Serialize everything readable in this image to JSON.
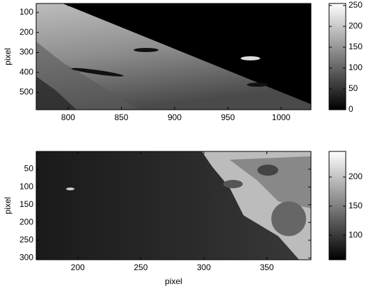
{
  "chart_data": [
    {
      "type": "image",
      "ylabel": "pixel",
      "xlim": [
        770,
        1028
      ],
      "xticks": [
        800,
        850,
        900,
        950,
        1000
      ],
      "ylim": [
        587,
        55
      ],
      "yticks": [
        100,
        200,
        300,
        400,
        500
      ],
      "clim": [
        0,
        255
      ],
      "cticks": [
        0,
        50,
        100,
        150,
        200,
        250
      ]
    },
    {
      "type": "image",
      "xlabel": "pixel",
      "ylabel": "pixel",
      "xlim": [
        167,
        385
      ],
      "xticks": [
        200,
        250,
        300,
        350
      ],
      "ylim": [
        305,
        0
      ],
      "yticks": [
        50,
        100,
        150,
        200,
        250,
        300
      ],
      "clim": [
        58,
        244
      ],
      "cticks": [
        100,
        150,
        200
      ]
    }
  ]
}
